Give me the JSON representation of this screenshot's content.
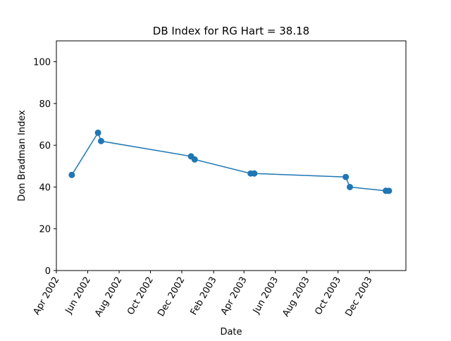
{
  "chart_data": {
    "type": "line",
    "title": "DB Index for RG Hart = 38.18",
    "xlabel": "Date",
    "ylabel": "Don Bradman Index",
    "ylim": [
      0,
      110
    ],
    "yticks": [
      0,
      20,
      40,
      60,
      80,
      100
    ],
    "xlim": [
      "2002-04-01",
      "2004-02-10"
    ],
    "xticks": [
      {
        "date": "2002-04-01",
        "label": "Apr 2002"
      },
      {
        "date": "2002-06-01",
        "label": "Jun 2002"
      },
      {
        "date": "2002-08-01",
        "label": "Aug 2002"
      },
      {
        "date": "2002-10-01",
        "label": "Oct 2002"
      },
      {
        "date": "2002-12-01",
        "label": "Dec 2002"
      },
      {
        "date": "2003-02-01",
        "label": "Feb 2003"
      },
      {
        "date": "2003-04-01",
        "label": "Apr 2003"
      },
      {
        "date": "2003-06-01",
        "label": "Jun 2003"
      },
      {
        "date": "2003-08-01",
        "label": "Aug 2003"
      },
      {
        "date": "2003-10-01",
        "label": "Oct 2003"
      },
      {
        "date": "2003-12-01",
        "label": "Dec 2003"
      }
    ],
    "grid": false,
    "color": "#1f77b4",
    "series": [
      {
        "points": [
          {
            "x": "2002-05-01",
            "y": 45.8
          },
          {
            "x": "2002-06-21",
            "y": 66.0
          },
          {
            "x": "2002-06-27",
            "y": 62.0
          },
          {
            "x": "2002-12-19",
            "y": 54.7
          },
          {
            "x": "2002-12-26",
            "y": 53.2
          },
          {
            "x": "2003-04-14",
            "y": 46.5
          },
          {
            "x": "2003-04-21",
            "y": 46.5
          },
          {
            "x": "2003-10-16",
            "y": 44.8
          },
          {
            "x": "2003-10-24",
            "y": 40.0
          },
          {
            "x": "2004-01-02",
            "y": 38.2
          },
          {
            "x": "2004-01-08",
            "y": 38.18
          }
        ]
      }
    ]
  }
}
